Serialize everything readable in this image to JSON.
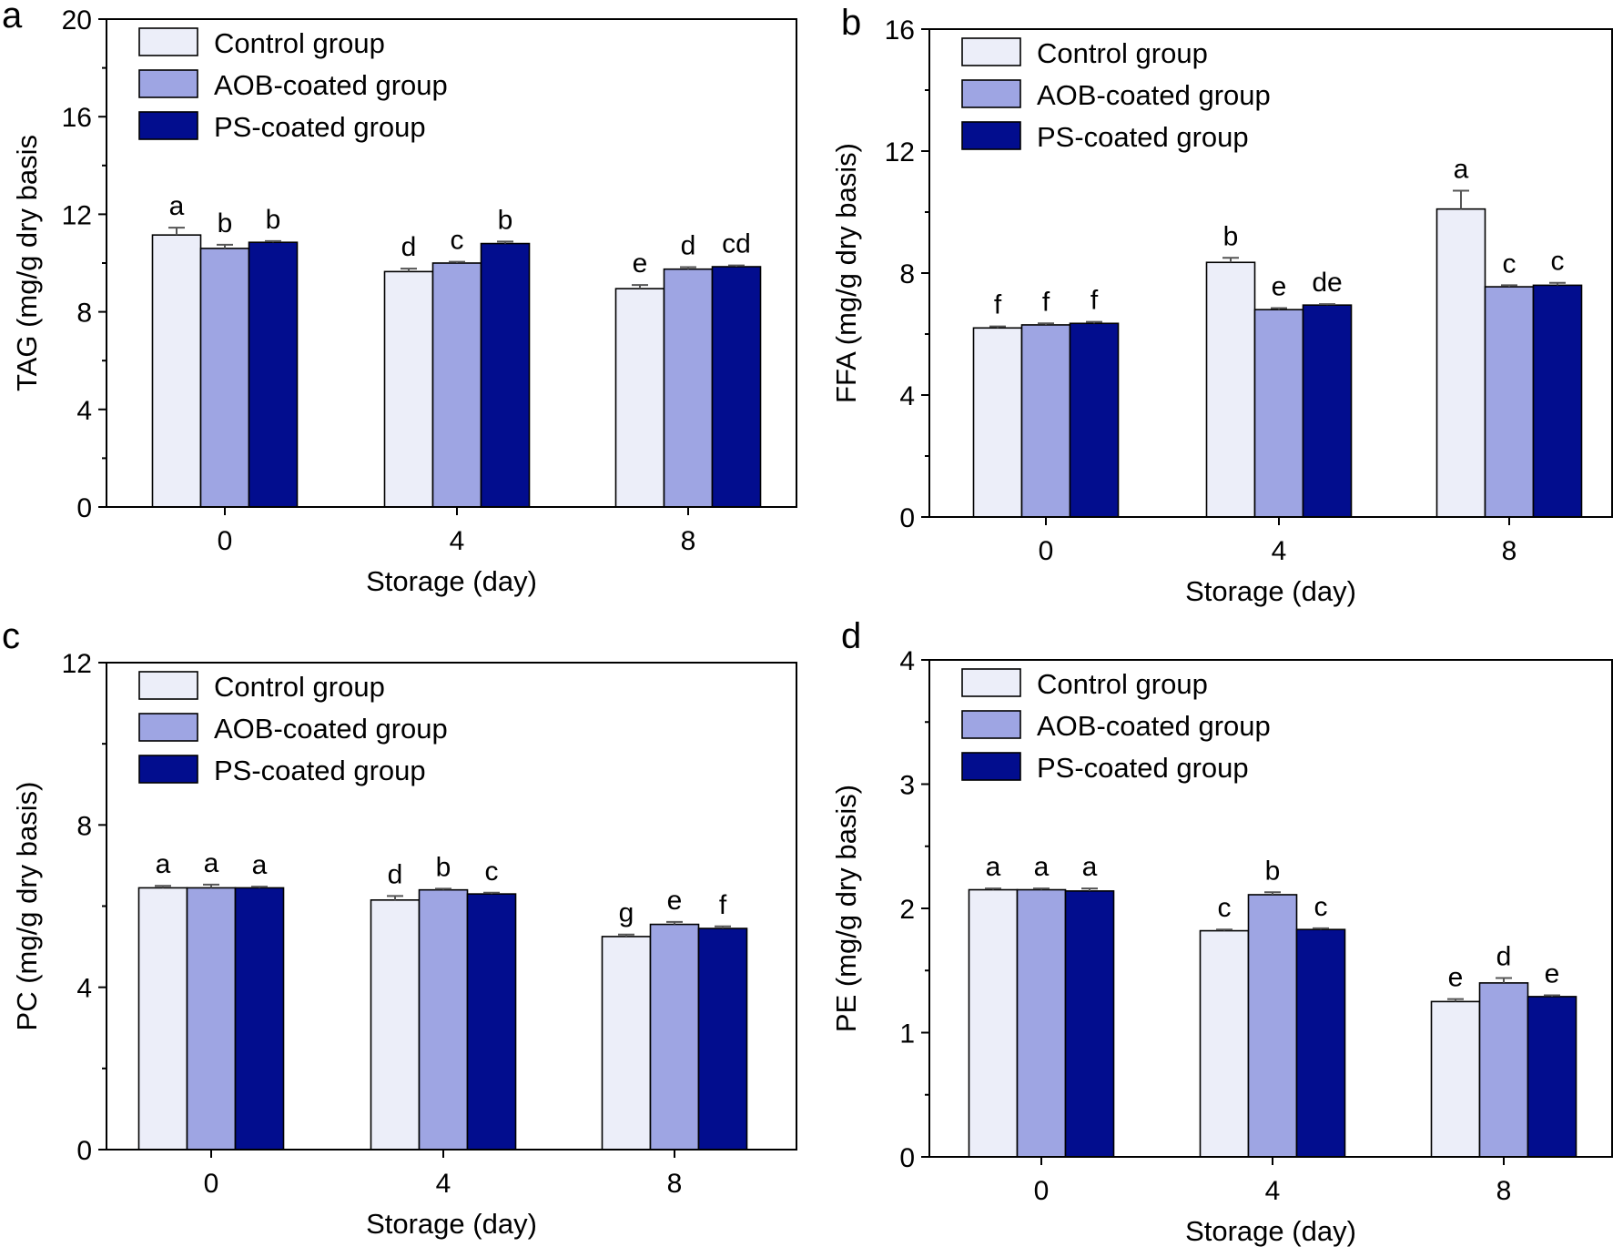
{
  "colors": {
    "series": [
      "#eceef9",
      "#9ea5e3",
      "#020d8e"
    ],
    "axis": "#000000",
    "error_bar": "#555555"
  },
  "chart_data": [
    {
      "panel": "a",
      "type": "bar",
      "categories": [
        "0",
        "4",
        "8"
      ],
      "xlabel": "Storage (day)",
      "ylabel": "TAG (mg/g dry basis",
      "ylim": [
        0,
        20
      ],
      "yticks": [
        "0",
        "4",
        "8",
        "12",
        "16",
        "20"
      ],
      "legend_position": "top-left",
      "series": [
        {
          "name": "Control group",
          "values": [
            11.15,
            9.65,
            8.95
          ],
          "errors": [
            0.3,
            0.12,
            0.15
          ],
          "labels": [
            "a",
            "d",
            "e"
          ]
        },
        {
          "name": "AOB-coated group",
          "values": [
            10.6,
            10.0,
            9.75
          ],
          "errors": [
            0.15,
            0.05,
            0.08
          ],
          "labels": [
            "b",
            "c",
            "d"
          ]
        },
        {
          "name": "PS-coated group",
          "values": [
            10.85,
            10.8,
            9.85
          ],
          "errors": [
            0.05,
            0.08,
            0.05
          ],
          "labels": [
            "b",
            "b",
            "cd"
          ]
        }
      ]
    },
    {
      "panel": "b",
      "type": "bar",
      "categories": [
        "0",
        "4",
        "8"
      ],
      "xlabel": "Storage (day)",
      "ylabel": "FFA (mg/g dry basis)",
      "ylim": [
        0,
        16
      ],
      "yticks": [
        "0",
        "4",
        "8",
        "12",
        "16"
      ],
      "legend_position": "top-left",
      "series": [
        {
          "name": "Control group",
          "values": [
            6.2,
            8.35,
            10.1
          ],
          "errors": [
            0.05,
            0.15,
            0.6
          ],
          "labels": [
            "f",
            "b",
            "a"
          ]
        },
        {
          "name": "AOB-coated group",
          "values": [
            6.3,
            6.8,
            7.55
          ],
          "errors": [
            0.05,
            0.05,
            0.05
          ],
          "labels": [
            "f",
            "e",
            "c"
          ]
        },
        {
          "name": "PS-coated group",
          "values": [
            6.35,
            6.95,
            7.6
          ],
          "errors": [
            0.05,
            0.03,
            0.08
          ],
          "labels": [
            "f",
            "de",
            "c"
          ]
        }
      ]
    },
    {
      "panel": "c",
      "type": "bar",
      "categories": [
        "0",
        "4",
        "8"
      ],
      "xlabel": "Storage (day)",
      "ylabel": "PC (mg/g dry basis)",
      "ylim": [
        0,
        12
      ],
      "yticks": [
        "0",
        "4",
        "8",
        "12"
      ],
      "legend_position": "top-left",
      "series": [
        {
          "name": "Control group",
          "values": [
            6.45,
            6.15,
            5.25
          ],
          "errors": [
            0.05,
            0.1,
            0.05
          ],
          "labels": [
            "a",
            "d",
            "g"
          ]
        },
        {
          "name": "AOB-coated group",
          "values": [
            6.45,
            6.4,
            5.55
          ],
          "errors": [
            0.08,
            0.03,
            0.06
          ],
          "labels": [
            "a",
            "b",
            "e"
          ]
        },
        {
          "name": "PS-coated group",
          "values": [
            6.45,
            6.3,
            5.45
          ],
          "errors": [
            0.03,
            0.03,
            0.05
          ],
          "labels": [
            "a",
            "c",
            "f"
          ]
        }
      ]
    },
    {
      "panel": "d",
      "type": "bar",
      "categories": [
        "0",
        "4",
        "8"
      ],
      "xlabel": "Storage (day)",
      "ylabel": "PE (mg/g dry basis)",
      "ylim": [
        0,
        4
      ],
      "yticks": [
        "0",
        "1",
        "2",
        "3",
        "4"
      ],
      "legend_position": "top-left",
      "series": [
        {
          "name": "Control group",
          "values": [
            2.15,
            1.82,
            1.25
          ],
          "errors": [
            0.01,
            0.01,
            0.02
          ],
          "labels": [
            "a",
            "c",
            "e"
          ]
        },
        {
          "name": "AOB-coated group",
          "values": [
            2.15,
            2.11,
            1.4
          ],
          "errors": [
            0.01,
            0.02,
            0.04
          ],
          "labels": [
            "a",
            "b",
            "d"
          ]
        },
        {
          "name": "PS-coated group",
          "values": [
            2.14,
            1.83,
            1.29
          ],
          "errors": [
            0.02,
            0.01,
            0.01
          ],
          "labels": [
            "a",
            "c",
            "e"
          ]
        }
      ]
    }
  ]
}
